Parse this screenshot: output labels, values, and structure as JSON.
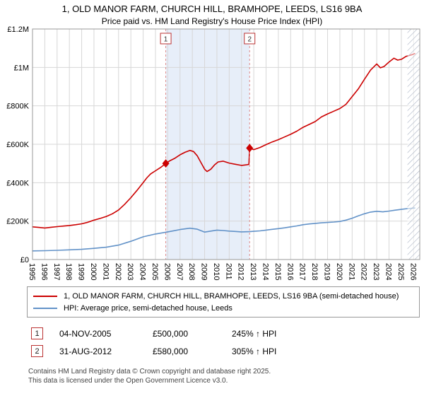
{
  "title": "1, OLD MANOR FARM, CHURCH HILL, BRAMHOPE, LEEDS, LS16 9BA",
  "subtitle": "Price paid vs. HM Land Registry's House Price Index (HPI)",
  "chart_data": {
    "type": "line",
    "x_range": [
      1995,
      2026.5
    ],
    "y_range": [
      0,
      1200000
    ],
    "x_ticks": [
      1995,
      1996,
      1997,
      1998,
      1999,
      2000,
      2001,
      2002,
      2003,
      2004,
      2005,
      2006,
      2007,
      2008,
      2009,
      2010,
      2011,
      2012,
      2013,
      2014,
      2015,
      2016,
      2017,
      2018,
      2019,
      2020,
      2021,
      2022,
      2023,
      2024,
      2025,
      2026
    ],
    "y_ticks": [
      {
        "value": 0,
        "label": "£0"
      },
      {
        "value": 200000,
        "label": "£200K"
      },
      {
        "value": 400000,
        "label": "£400K"
      },
      {
        "value": 600000,
        "label": "£600K"
      },
      {
        "value": 800000,
        "label": "£800K"
      },
      {
        "value": 1000000,
        "label": "£1M"
      },
      {
        "value": 1200000,
        "label": "£1.2M"
      }
    ],
    "shaded_span": [
      2005.84,
      2012.66
    ],
    "hatch_span": [
      2025.5,
      2026.5
    ],
    "colors": {
      "property": "#cc0000",
      "hpi": "#6292c8",
      "band": "#e7eef9",
      "grid": "#d7d7d7",
      "frame": "#999999",
      "dashed": "#dd8888",
      "hatch": "#a9b2c3",
      "marker_box_border": "#bb3333"
    },
    "markers": [
      {
        "label": "1",
        "x": 2005.84,
        "y": 500000
      },
      {
        "label": "2",
        "x": 2012.66,
        "y": 580000
      }
    ],
    "series": [
      {
        "id": "series-line-property",
        "name": "1, OLD MANOR FARM, CHURCH HILL, BRAMHOPE, LEEDS, LS16 9BA (semi-detached house)",
        "color": "#cc0000",
        "points": [
          [
            1995.0,
            170000
          ],
          [
            1995.5,
            167000
          ],
          [
            1996.0,
            164000
          ],
          [
            1996.5,
            168000
          ],
          [
            1997.0,
            171000
          ],
          [
            1997.5,
            174000
          ],
          [
            1998.0,
            177000
          ],
          [
            1998.5,
            181000
          ],
          [
            1999.0,
            186000
          ],
          [
            1999.5,
            194000
          ],
          [
            2000.0,
            205000
          ],
          [
            2000.5,
            214000
          ],
          [
            2001.0,
            224000
          ],
          [
            2001.5,
            238000
          ],
          [
            2002.0,
            258000
          ],
          [
            2002.5,
            288000
          ],
          [
            2003.0,
            322000
          ],
          [
            2003.5,
            360000
          ],
          [
            2004.0,
            400000
          ],
          [
            2004.3,
            425000
          ],
          [
            2004.6,
            445000
          ],
          [
            2005.0,
            462000
          ],
          [
            2005.4,
            478000
          ],
          [
            2005.84,
            500000
          ],
          [
            2006.2,
            515000
          ],
          [
            2006.6,
            528000
          ],
          [
            2007.0,
            545000
          ],
          [
            2007.4,
            558000
          ],
          [
            2007.8,
            568000
          ],
          [
            2008.1,
            562000
          ],
          [
            2008.4,
            540000
          ],
          [
            2008.7,
            505000
          ],
          [
            2009.0,
            470000
          ],
          [
            2009.2,
            458000
          ],
          [
            2009.5,
            470000
          ],
          [
            2009.8,
            492000
          ],
          [
            2010.1,
            508000
          ],
          [
            2010.5,
            512000
          ],
          [
            2011.0,
            502000
          ],
          [
            2011.5,
            496000
          ],
          [
            2012.0,
            490000
          ],
          [
            2012.4,
            493000
          ],
          [
            2012.6,
            495000
          ],
          [
            2012.66,
            580000
          ],
          [
            2013.0,
            572000
          ],
          [
            2013.5,
            583000
          ],
          [
            2014.0,
            598000
          ],
          [
            2014.5,
            612000
          ],
          [
            2015.0,
            624000
          ],
          [
            2015.5,
            638000
          ],
          [
            2016.0,
            652000
          ],
          [
            2016.5,
            668000
          ],
          [
            2017.0,
            688000
          ],
          [
            2017.5,
            703000
          ],
          [
            2018.0,
            718000
          ],
          [
            2018.5,
            742000
          ],
          [
            2019.0,
            758000
          ],
          [
            2019.5,
            772000
          ],
          [
            2020.0,
            786000
          ],
          [
            2020.5,
            808000
          ],
          [
            2021.0,
            848000
          ],
          [
            2021.5,
            888000
          ],
          [
            2022.0,
            938000
          ],
          [
            2022.5,
            986000
          ],
          [
            2023.0,
            1018000
          ],
          [
            2023.3,
            998000
          ],
          [
            2023.6,
            1005000
          ],
          [
            2024.0,
            1028000
          ],
          [
            2024.4,
            1048000
          ],
          [
            2024.7,
            1038000
          ],
          [
            2025.0,
            1042000
          ],
          [
            2025.4,
            1058000
          ],
          [
            2025.8,
            1065000
          ],
          [
            2026.1,
            1072000
          ]
        ]
      },
      {
        "id": "series-line-hpi",
        "name": "HPI: Average price, semi-detached house, Leeds",
        "color": "#6292c8",
        "points": [
          [
            1995.0,
            45000
          ],
          [
            1996.0,
            46000
          ],
          [
            1997.0,
            48000
          ],
          [
            1998.0,
            50500
          ],
          [
            1999.0,
            53000
          ],
          [
            2000.0,
            58000
          ],
          [
            2001.0,
            64000
          ],
          [
            2002.0,
            75000
          ],
          [
            2003.0,
            95000
          ],
          [
            2004.0,
            118000
          ],
          [
            2005.0,
            133000
          ],
          [
            2005.84,
            142000
          ],
          [
            2006.5,
            150000
          ],
          [
            2007.0,
            156000
          ],
          [
            2007.8,
            163000
          ],
          [
            2008.4,
            158000
          ],
          [
            2009.0,
            143000
          ],
          [
            2009.5,
            148000
          ],
          [
            2010.0,
            153000
          ],
          [
            2010.5,
            151000
          ],
          [
            2011.0,
            148000
          ],
          [
            2011.5,
            146000
          ],
          [
            2012.0,
            144000
          ],
          [
            2012.66,
            145000
          ],
          [
            2013.0,
            147000
          ],
          [
            2013.5,
            149000
          ],
          [
            2014.0,
            153000
          ],
          [
            2014.5,
            157000
          ],
          [
            2015.0,
            161000
          ],
          [
            2015.5,
            165000
          ],
          [
            2016.0,
            170000
          ],
          [
            2016.5,
            175000
          ],
          [
            2017.0,
            181000
          ],
          [
            2017.5,
            185000
          ],
          [
            2018.0,
            188000
          ],
          [
            2018.5,
            191000
          ],
          [
            2019.0,
            193000
          ],
          [
            2019.5,
            195000
          ],
          [
            2020.0,
            198000
          ],
          [
            2020.5,
            205000
          ],
          [
            2021.0,
            215000
          ],
          [
            2021.5,
            227000
          ],
          [
            2022.0,
            238000
          ],
          [
            2022.5,
            247000
          ],
          [
            2023.0,
            251000
          ],
          [
            2023.5,
            248000
          ],
          [
            2024.0,
            252000
          ],
          [
            2024.5,
            257000
          ],
          [
            2025.0,
            261000
          ],
          [
            2025.5,
            265000
          ],
          [
            2026.1,
            268000
          ]
        ]
      }
    ]
  },
  "transactions": [
    {
      "num": "1",
      "date": "04-NOV-2005",
      "price": "£500,000",
      "hpi": "245% ↑ HPI"
    },
    {
      "num": "2",
      "date": "31-AUG-2012",
      "price": "£580,000",
      "hpi": "305% ↑ HPI"
    }
  ],
  "footer": [
    "Contains HM Land Registry data © Crown copyright and database right 2025.",
    "This data is licensed under the Open Government Licence v3.0."
  ]
}
